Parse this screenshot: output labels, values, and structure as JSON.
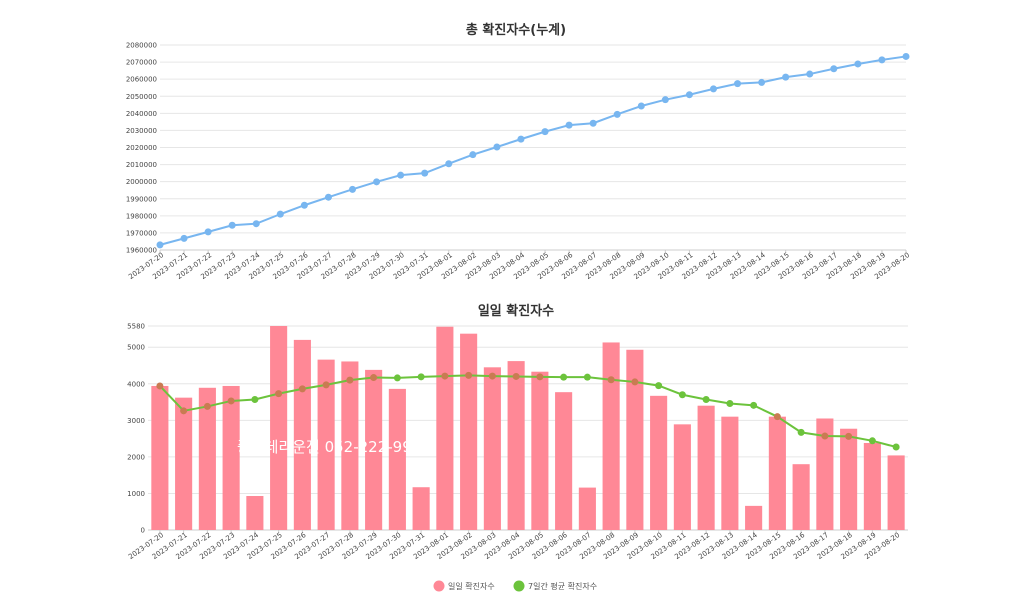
{
  "colors": {
    "cumulative_line": "#78b6f0",
    "daily_bar": "#ff8896",
    "avg_line": "#6cc33c",
    "avg_point_overlap": "#c97b52",
    "grid": "#e6e6e6"
  },
  "watermark": {
    "text": "중심데리운전 052-222-9998"
  },
  "chart_data": [
    {
      "type": "line",
      "title": "총 확진자수(누계)",
      "xlabel": "",
      "ylabel": "",
      "x": [
        "2023-07-20",
        "2023-07-21",
        "2023-07-22",
        "2023-07-23",
        "2023-07-24",
        "2023-07-25",
        "2023-07-26",
        "2023-07-27",
        "2023-07-28",
        "2023-07-29",
        "2023-07-30",
        "2023-07-31",
        "2023-08-01",
        "2023-08-02",
        "2023-08-03",
        "2023-08-04",
        "2023-08-05",
        "2023-08-06",
        "2023-08-07",
        "2023-08-08",
        "2023-08-09",
        "2023-08-10",
        "2023-08-11",
        "2023-08-12",
        "2023-08-13",
        "2023-08-14",
        "2023-08-15",
        "2023-08-16",
        "2023-08-17",
        "2023-08-18",
        "2023-08-19",
        "2023-08-20"
      ],
      "series": [
        {
          "values": [
            1963000,
            1966800,
            1970600,
            1974500,
            1975400,
            1981000,
            1986200,
            1990900,
            1995500,
            1999900,
            2003800,
            2005000,
            2010500,
            2015800,
            2020300,
            2024900,
            2029300,
            2033100,
            2034200,
            2039400,
            2044300,
            2048000,
            2050900,
            2054300,
            2057400,
            2058100,
            2061200,
            2063000,
            2066100,
            2068900,
            2071300,
            2073300
          ]
        }
      ],
      "yticks": [
        "1960000",
        "1970000",
        "1980000",
        "1990000",
        "2000000",
        "2010000",
        "2020000",
        "2030000",
        "2040000",
        "2050000",
        "2060000",
        "2070000",
        "2080000"
      ],
      "ylim": [
        1960000,
        2080000
      ],
      "grid": true
    },
    {
      "type": "bar",
      "title": "일일 확진자수",
      "xlabel": "",
      "ylabel": "",
      "x": [
        "2023-07-20",
        "2023-07-21",
        "2023-07-22",
        "2023-07-23",
        "2023-07-24",
        "2023-07-25",
        "2023-07-26",
        "2023-07-27",
        "2023-07-28",
        "2023-07-29",
        "2023-07-30",
        "2023-07-31",
        "2023-08-01",
        "2023-08-02",
        "2023-08-03",
        "2023-08-04",
        "2023-08-05",
        "2023-08-06",
        "2023-08-07",
        "2023-08-08",
        "2023-08-09",
        "2023-08-10",
        "2023-08-11",
        "2023-08-12",
        "2023-08-13",
        "2023-08-14",
        "2023-08-15",
        "2023-08-16",
        "2023-08-17",
        "2023-08-18",
        "2023-08-19",
        "2023-08-20"
      ],
      "series": [
        {
          "name": "일일 확진자수",
          "type": "bar",
          "values": [
            3940,
            3620,
            3890,
            3940,
            930,
            5580,
            5200,
            4660,
            4610,
            4380,
            3860,
            1170,
            5560,
            5370,
            4450,
            4620,
            4330,
            3770,
            1160,
            5130,
            4930,
            3670,
            2890,
            3400,
            3100,
            660,
            3100,
            1800,
            3050,
            2770,
            2380,
            2040
          ]
        },
        {
          "name": "7일간 평균 확진자수",
          "type": "line",
          "values": [
            3940,
            3260,
            3380,
            3530,
            3570,
            3730,
            3860,
            3970,
            4100,
            4170,
            4160,
            4190,
            4210,
            4230,
            4210,
            4200,
            4190,
            4180,
            4180,
            4110,
            4050,
            3950,
            3700,
            3570,
            3460,
            3410,
            3100,
            2670,
            2570,
            2560,
            2440,
            2270
          ]
        }
      ],
      "yticks": [
        "0",
        "1000",
        "2000",
        "3000",
        "4000",
        "5000",
        "5580"
      ],
      "ylim": [
        0,
        5580
      ],
      "grid": true,
      "legend": "bottom-center"
    }
  ]
}
